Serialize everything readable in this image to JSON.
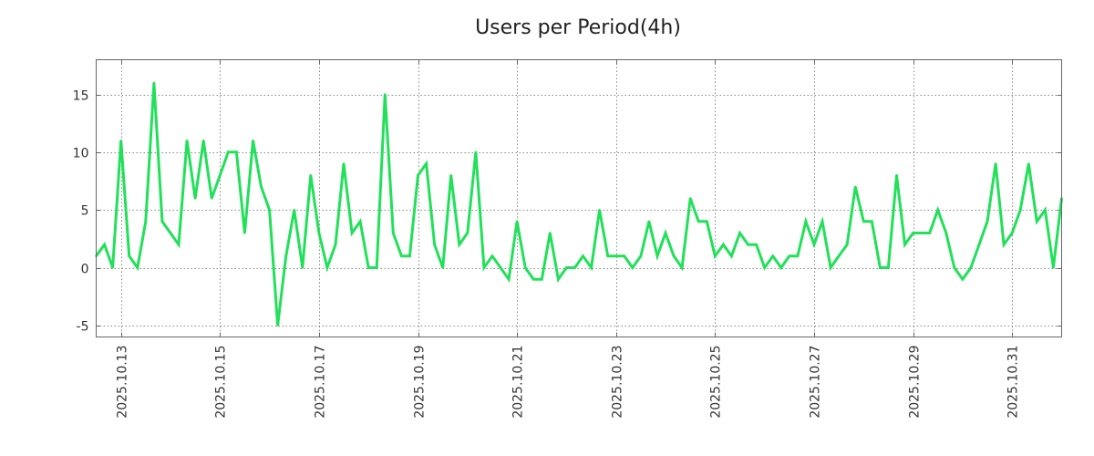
{
  "chart_data": {
    "type": "line",
    "title": "Users per Period(4h)",
    "xlabel": "",
    "ylabel": "",
    "ylim": [
      -6,
      18
    ],
    "yticks": [
      -5,
      0,
      5,
      10,
      15
    ],
    "ytick_labels": [
      "-5",
      "0",
      "5",
      "10",
      "15"
    ],
    "xlim": [
      "2025-10-12 12:00",
      "2025-11-01 00:00"
    ],
    "xticks": [
      "2025-10-13",
      "2025-10-15",
      "2025-10-17",
      "2025-10-19",
      "2025-10-21",
      "2025-10-23",
      "2025-10-25",
      "2025-10-27",
      "2025-10-29",
      "2025-10-31"
    ],
    "xtick_labels": [
      "2025.10.13",
      "2025.10.15",
      "2025.10.17",
      "2025.10.19",
      "2025.10.21",
      "2025.10.23",
      "2025.10.25",
      "2025.10.27",
      "2025.10.29",
      "2025.10.31"
    ],
    "grid": true,
    "line_color": "#22e05a",
    "series": [
      {
        "x": [
          "2025-10-12 12:00",
          "2025-10-12 16:00",
          "2025-10-12 20:00",
          "2025-10-13 00:00",
          "2025-10-13 04:00",
          "2025-10-13 08:00",
          "2025-10-13 12:00",
          "2025-10-13 16:00",
          "2025-10-13 20:00",
          "2025-10-14 00:00",
          "2025-10-14 04:00",
          "2025-10-14 08:00",
          "2025-10-14 12:00",
          "2025-10-14 16:00",
          "2025-10-14 20:00",
          "2025-10-15 00:00",
          "2025-10-15 04:00",
          "2025-10-15 08:00",
          "2025-10-15 12:00",
          "2025-10-15 16:00",
          "2025-10-15 20:00",
          "2025-10-16 00:00",
          "2025-10-16 04:00",
          "2025-10-16 08:00",
          "2025-10-16 12:00",
          "2025-10-16 16:00",
          "2025-10-16 20:00",
          "2025-10-17 00:00",
          "2025-10-17 04:00",
          "2025-10-17 08:00",
          "2025-10-17 12:00",
          "2025-10-17 16:00",
          "2025-10-17 20:00",
          "2025-10-18 00:00",
          "2025-10-18 04:00",
          "2025-10-18 08:00",
          "2025-10-18 12:00",
          "2025-10-18 16:00",
          "2025-10-18 20:00",
          "2025-10-19 00:00",
          "2025-10-19 04:00",
          "2025-10-19 08:00",
          "2025-10-19 12:00",
          "2025-10-19 16:00",
          "2025-10-19 20:00",
          "2025-10-20 00:00",
          "2025-10-20 04:00",
          "2025-10-20 08:00",
          "2025-10-20 12:00",
          "2025-10-20 16:00",
          "2025-10-20 20:00",
          "2025-10-21 00:00",
          "2025-10-21 04:00",
          "2025-10-21 08:00",
          "2025-10-21 12:00",
          "2025-10-21 16:00",
          "2025-10-21 20:00",
          "2025-10-22 00:00",
          "2025-10-22 04:00",
          "2025-10-22 08:00",
          "2025-10-22 12:00",
          "2025-10-22 16:00",
          "2025-10-22 20:00",
          "2025-10-23 00:00",
          "2025-10-23 04:00",
          "2025-10-23 08:00",
          "2025-10-23 12:00",
          "2025-10-23 16:00",
          "2025-10-23 20:00",
          "2025-10-24 00:00",
          "2025-10-24 04:00",
          "2025-10-24 08:00",
          "2025-10-24 12:00",
          "2025-10-24 16:00",
          "2025-10-24 20:00",
          "2025-10-25 00:00",
          "2025-10-25 04:00",
          "2025-10-25 08:00",
          "2025-10-25 12:00",
          "2025-10-25 16:00",
          "2025-10-25 20:00",
          "2025-10-26 00:00",
          "2025-10-26 04:00",
          "2025-10-26 08:00",
          "2025-10-26 12:00",
          "2025-10-26 16:00",
          "2025-10-26 20:00",
          "2025-10-27 00:00",
          "2025-10-27 04:00",
          "2025-10-27 08:00",
          "2025-10-27 12:00",
          "2025-10-27 16:00",
          "2025-10-27 20:00",
          "2025-10-28 00:00",
          "2025-10-28 04:00",
          "2025-10-28 08:00",
          "2025-10-28 12:00",
          "2025-10-28 16:00",
          "2025-10-28 20:00",
          "2025-10-29 00:00",
          "2025-10-29 04:00",
          "2025-10-29 08:00",
          "2025-10-29 12:00",
          "2025-10-29 16:00",
          "2025-10-29 20:00",
          "2025-10-30 00:00",
          "2025-10-30 04:00",
          "2025-10-30 08:00",
          "2025-10-30 12:00",
          "2025-10-30 16:00",
          "2025-10-30 20:00",
          "2025-10-31 00:00",
          "2025-10-31 04:00",
          "2025-10-31 08:00",
          "2025-10-31 12:00",
          "2025-10-31 16:00",
          "2025-10-31 20:00",
          "2025-11-01 00:00"
        ],
        "values": [
          1,
          2,
          0,
          11,
          1,
          0,
          4,
          16,
          4,
          3,
          2,
          11,
          6,
          11,
          6,
          8,
          10,
          10,
          3,
          11,
          7,
          5,
          -5,
          1,
          5,
          0,
          8,
          3,
          0,
          2,
          9,
          3,
          4,
          0,
          0,
          15,
          3,
          1,
          1,
          8,
          9,
          2,
          0,
          8,
          2,
          3,
          10,
          0,
          1,
          0,
          -1,
          4,
          0,
          -1,
          -1,
          3,
          -1,
          0,
          0,
          1,
          0,
          5,
          1,
          1,
          1,
          0,
          1,
          4,
          1,
          3,
          1,
          0,
          6,
          4,
          4,
          1,
          2,
          1,
          3,
          2,
          2,
          0,
          1,
          0,
          1,
          1,
          4,
          2,
          4,
          0,
          1,
          2,
          7,
          4,
          4,
          0,
          0,
          8,
          2,
          3,
          3,
          3,
          5,
          3,
          0,
          -1,
          0,
          2,
          4,
          9,
          2,
          3,
          5,
          9,
          4,
          5,
          0,
          6
        ]
      }
    ]
  }
}
